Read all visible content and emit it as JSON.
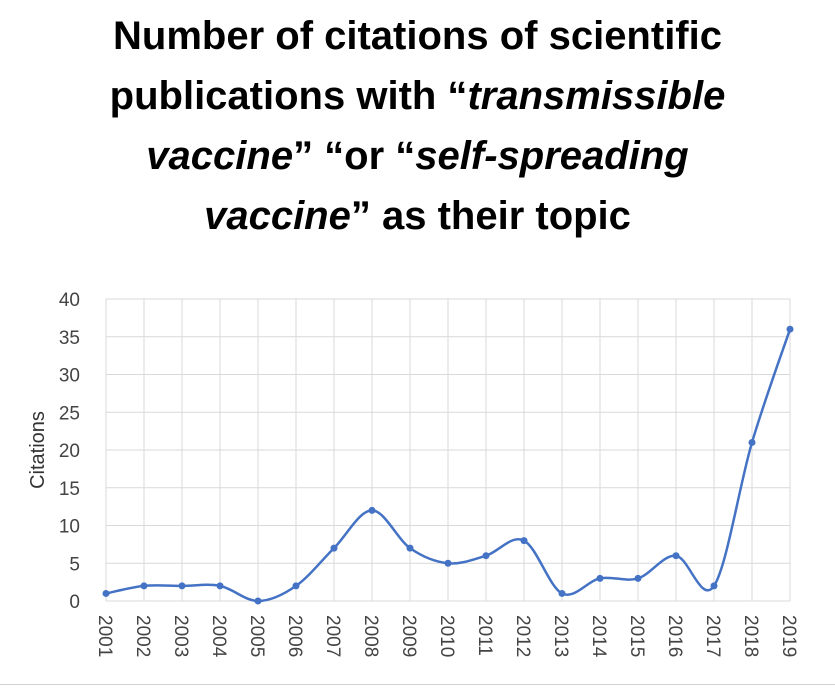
{
  "title": {
    "line1": "Number of citations of scientific",
    "line2_a": "publications with “",
    "line2_b": "transmissible",
    "line3_a": "vaccine",
    "line3_b": "” “or “",
    "line3_c": "self-spreading",
    "line4_a": "vaccine",
    "line4_b": "” as their topic"
  },
  "chart_data": {
    "type": "line",
    "title": "Number of citations of scientific publications with “transmissible vaccine” “or “self-spreading vaccine” as their topic",
    "xlabel": "",
    "ylabel": "Citations",
    "categories": [
      "2001",
      "2002",
      "2003",
      "2004",
      "2005",
      "2006",
      "2007",
      "2008",
      "2009",
      "2010",
      "2011",
      "2012",
      "2013",
      "2014",
      "2015",
      "2016",
      "2017",
      "2018",
      "2019"
    ],
    "values": [
      1,
      2,
      2,
      2,
      0,
      2,
      7,
      12,
      7,
      5,
      6,
      8,
      1,
      3,
      3,
      6,
      2,
      21,
      36
    ],
    "ylim": [
      0,
      40
    ],
    "yticks": [
      0,
      5,
      10,
      15,
      20,
      25,
      30,
      35,
      40
    ],
    "grid": true,
    "smooth": true,
    "markers": true,
    "legend": "none",
    "line_color": "#4472c4"
  }
}
